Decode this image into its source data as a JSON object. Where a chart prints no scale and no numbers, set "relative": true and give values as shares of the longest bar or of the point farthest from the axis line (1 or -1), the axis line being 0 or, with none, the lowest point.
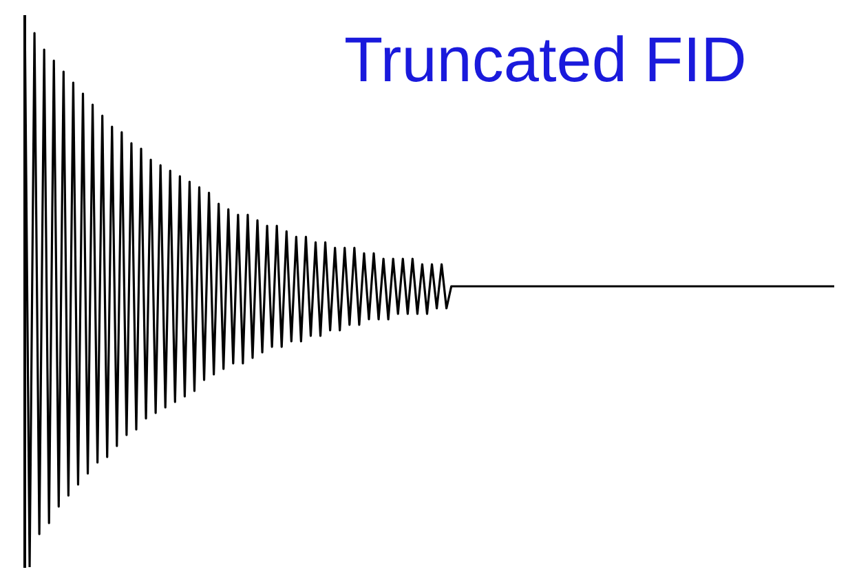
{
  "chart_data": {
    "type": "line",
    "title": "Truncated FID",
    "relative": true,
    "grid": false,
    "legend": false,
    "marker": "none",
    "line_style": "solid",
    "categories": [
      null,
      null,
      null,
      null,
      null,
      null,
      null,
      null,
      null,
      null,
      null,
      null,
      null,
      null,
      null,
      null,
      null,
      null,
      null,
      null,
      null,
      null,
      null,
      null,
      null,
      null,
      null,
      null,
      null,
      null,
      null,
      null,
      null,
      null,
      null,
      null,
      null,
      null,
      null,
      null,
      null,
      null,
      null,
      null,
      null,
      null,
      null,
      null,
      null,
      null,
      null,
      null,
      null,
      null,
      null,
      null,
      null,
      null,
      null,
      null,
      null,
      null,
      null,
      null,
      null,
      null,
      null,
      null,
      null,
      null,
      null,
      null,
      null,
      null,
      null,
      null,
      null,
      null,
      null,
      null,
      null,
      null,
      null,
      null,
      null,
      null,
      null,
      null,
      null,
      null,
      null,
      null,
      null,
      null,
      null,
      null,
      null,
      null,
      null,
      null,
      null,
      null,
      null,
      null,
      null,
      null,
      null,
      null,
      null,
      null,
      null,
      null,
      null,
      null,
      null,
      null,
      null,
      null,
      null,
      null,
      null,
      null,
      null,
      null,
      null,
      null,
      null,
      null,
      null,
      null,
      null,
      null,
      null,
      null,
      null,
      null,
      null,
      null,
      null,
      null,
      null,
      null,
      null,
      null,
      null,
      null,
      null,
      null,
      null,
      null,
      null,
      null,
      null,
      null,
      null,
      null,
      null,
      null,
      null,
      null,
      null,
      null,
      null,
      null,
      null,
      null,
      null,
      null
    ],
    "series": [
      {
        "color": "#000000",
        "values": [
          1,
          0,
          0.97,
          0.06,
          0.94,
          0.08,
          0.92,
          0.11,
          0.9,
          0.13,
          0.88,
          0.15,
          0.86,
          0.17,
          0.84,
          0.19,
          0.82,
          0.2,
          0.8,
          0.22,
          0.79,
          0.24,
          0.77,
          0.25,
          0.76,
          0.27,
          0.74,
          0.28,
          0.73,
          0.29,
          0.72,
          0.3,
          0.71,
          0.31,
          0.7,
          0.32,
          0.69,
          0.34,
          0.68,
          0.35,
          0.66,
          0.36,
          0.65,
          0.37,
          0.64,
          0.37,
          0.64,
          0.38,
          0.63,
          0.39,
          0.62,
          0.4,
          0.62,
          0.4,
          0.61,
          0.41,
          0.6,
          0.41,
          0.6,
          0.42,
          0.59,
          0.42,
          0.59,
          0.43,
          0.58,
          0.43,
          0.58,
          0.44,
          0.58,
          0.44,
          0.57,
          0.45,
          0.57,
          0.45,
          0.56,
          0.45,
          0.56,
          0.46,
          0.56,
          0.46,
          0.56,
          0.46,
          0.55,
          0.46,
          0.55,
          0.47,
          0.55,
          0.47,
          0.51,
          0.51,
          0.51,
          0.51,
          0.51,
          0.51,
          0.51,
          0.51,
          0.51,
          0.51,
          0.51,
          0.51,
          0.51,
          0.51,
          0.51,
          0.51,
          0.51,
          0.51,
          0.51,
          0.51,
          0.51,
          0.51,
          0.51,
          0.51,
          0.51,
          0.51,
          0.51,
          0.51,
          0.51,
          0.51,
          0.51,
          0.51,
          0.51,
          0.51,
          0.51,
          0.51,
          0.51,
          0.51,
          0.51,
          0.51,
          0.51,
          0.51,
          0.51,
          0.51,
          0.51,
          0.51,
          0.51,
          0.51,
          0.51,
          0.51,
          0.51,
          0.51,
          0.51,
          0.51,
          0.51,
          0.51,
          0.51,
          0.51,
          0.51,
          0.51,
          0.51,
          0.51,
          0.51,
          0.51,
          0.51,
          0.51,
          0.51,
          0.51,
          0.51,
          0.51,
          0.51,
          0.51,
          0.51,
          0.51,
          0.51,
          0.51,
          0.51,
          0.51,
          0.51,
          0.51
        ]
      }
    ]
  }
}
